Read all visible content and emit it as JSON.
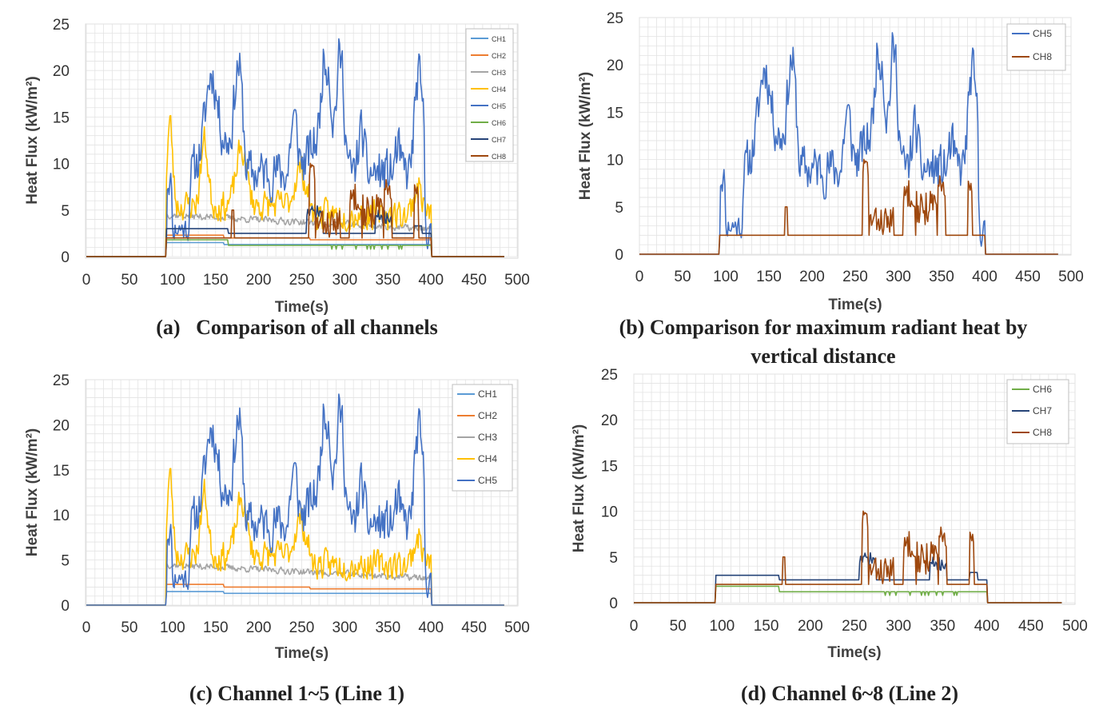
{
  "colors": {
    "CH1": "#5b9bd5",
    "CH2": "#ed7d31",
    "CH3": "#a5a5a5",
    "CH4": "#ffc000",
    "CH5": "#4472c4",
    "CH6": "#70ad47",
    "CH7": "#264478",
    "CH8": "#9e480e",
    "grid": "#e3e3e3",
    "border": "#d9d9d9"
  },
  "chart_data": [
    {
      "id": "a",
      "type": "line",
      "caption": "(a)   Comparison of all channels",
      "xlabel": "Time(s)",
      "ylabel": "Heat Flux (kW/m²)",
      "xlim": [
        0,
        500
      ],
      "ylim": [
        0,
        25
      ],
      "xticks": [
        0,
        50,
        100,
        150,
        200,
        250,
        300,
        350,
        400,
        450,
        500
      ],
      "yticks": [
        0,
        5,
        10,
        15,
        20,
        25
      ],
      "legend_position": "top-right",
      "series": [
        {
          "name": "CH1",
          "key": "CH1",
          "approx": "step, ~1.5 from 93 s to 400 s"
        },
        {
          "name": "CH2",
          "key": "CH2",
          "approx": "step, ~2.3 decreasing to ~1.9"
        },
        {
          "name": "CH3",
          "key": "CH3",
          "approx": "noisy, ~4.5 decreasing to ~3, peak ~5"
        },
        {
          "name": "CH4",
          "key": "CH4",
          "approx": "noisy, peaks 16 at ~97 s, 14 at ~137 s, 13 at ~180 s"
        },
        {
          "name": "CH5",
          "key": "CH5",
          "approx": "noisy, peaks 21.5 at ~177 s, 24 at ~278 s, 23 at ~295 s, 20.5 at ~385 s"
        },
        {
          "name": "CH6",
          "key": "CH6",
          "approx": "step, ~1.8 decreasing to ~1.1"
        },
        {
          "name": "CH7",
          "key": "CH7",
          "approx": "step, ~3 with bumps to ~4 near 270 s and 345 s"
        },
        {
          "name": "CH8",
          "key": "CH8",
          "approx": "step ~2, bursts to ~10.5 at ~262 s and ~8.5 at ~350 s"
        }
      ]
    },
    {
      "id": "b",
      "type": "line",
      "caption_line1": "(b) Comparison for maximum radiant heat by",
      "caption_line2": "vertical distance",
      "xlabel": "Time(s)",
      "ylabel": "Heat Flux (kW/m²)",
      "xlim": [
        0,
        500
      ],
      "ylim": [
        0,
        25
      ],
      "xticks": [
        0,
        50,
        100,
        150,
        200,
        250,
        300,
        350,
        400,
        450,
        500
      ],
      "yticks": [
        0,
        5,
        10,
        15,
        20,
        25
      ],
      "legend_position": "top-right",
      "series": [
        {
          "name": "CH5",
          "key": "CH5"
        },
        {
          "name": "CH8",
          "key": "CH8"
        }
      ]
    },
    {
      "id": "c",
      "type": "line",
      "caption": "(c) Channel 1~5 (Line 1)",
      "xlabel": "Time(s)",
      "ylabel": "Heat Flux (kW/m²)",
      "xlim": [
        0,
        500
      ],
      "ylim": [
        0,
        25
      ],
      "xticks": [
        0,
        50,
        100,
        150,
        200,
        250,
        300,
        350,
        400,
        450,
        500
      ],
      "yticks": [
        0,
        5,
        10,
        15,
        20,
        25
      ],
      "legend_position": "top-right",
      "series": [
        {
          "name": "CH1",
          "key": "CH1"
        },
        {
          "name": "CH2",
          "key": "CH2"
        },
        {
          "name": "CH3",
          "key": "CH3"
        },
        {
          "name": "CH4",
          "key": "CH4"
        },
        {
          "name": "CH5",
          "key": "CH5"
        }
      ]
    },
    {
      "id": "d",
      "type": "line",
      "caption": "(d) Channel 6~8 (Line 2)",
      "xlabel": "Time(s)",
      "ylabel": "Heat Flux (kW/m²)",
      "xlim": [
        0,
        500
      ],
      "ylim": [
        0,
        25
      ],
      "xticks": [
        0,
        50,
        100,
        150,
        200,
        250,
        300,
        350,
        400,
        450,
        500
      ],
      "yticks": [
        0,
        5,
        10,
        15,
        20,
        25
      ],
      "legend_position": "top-right",
      "series": [
        {
          "name": "CH6",
          "key": "CH6"
        },
        {
          "name": "CH7",
          "key": "CH7"
        },
        {
          "name": "CH8",
          "key": "CH8"
        }
      ]
    }
  ]
}
